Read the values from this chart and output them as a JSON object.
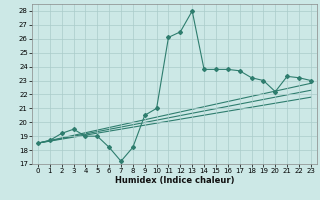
{
  "title": "",
  "xlabel": "Humidex (Indice chaleur)",
  "bg_color": "#cce8e6",
  "grid_color": "#aaccca",
  "line_color": "#2e7d6e",
  "xlim": [
    -0.5,
    23.5
  ],
  "ylim": [
    17,
    28.5
  ],
  "yticks": [
    17,
    18,
    19,
    20,
    21,
    22,
    23,
    24,
    25,
    26,
    27,
    28
  ],
  "xticks": [
    0,
    1,
    2,
    3,
    4,
    5,
    6,
    7,
    8,
    9,
    10,
    11,
    12,
    13,
    14,
    15,
    16,
    17,
    18,
    19,
    20,
    21,
    22,
    23
  ],
  "series": [
    {
      "x": [
        0,
        1,
        2,
        3,
        4,
        5,
        6,
        7,
        8,
        9,
        10,
        11,
        12,
        13,
        14,
        15,
        16,
        17,
        18,
        19,
        20,
        21,
        22,
        23
      ],
      "y": [
        18.5,
        18.7,
        19.2,
        19.5,
        19.0,
        19.0,
        18.2,
        17.2,
        18.2,
        20.5,
        21.0,
        26.1,
        26.5,
        28.0,
        23.8,
        23.8,
        23.8,
        23.7,
        23.2,
        23.0,
        22.2,
        23.3,
        23.2,
        23.0
      ],
      "marker": true
    },
    {
      "x": [
        0,
        23
      ],
      "y": [
        18.5,
        21.8
      ],
      "marker": false
    },
    {
      "x": [
        0,
        23
      ],
      "y": [
        18.5,
        22.3
      ],
      "marker": false
    },
    {
      "x": [
        0,
        23
      ],
      "y": [
        18.5,
        22.8
      ],
      "marker": false
    }
  ],
  "xlabel_fontsize": 6,
  "xlabel_fontweight": "bold",
  "tick_fontsize": 5,
  "linewidth": 0.8,
  "markersize": 2.0
}
